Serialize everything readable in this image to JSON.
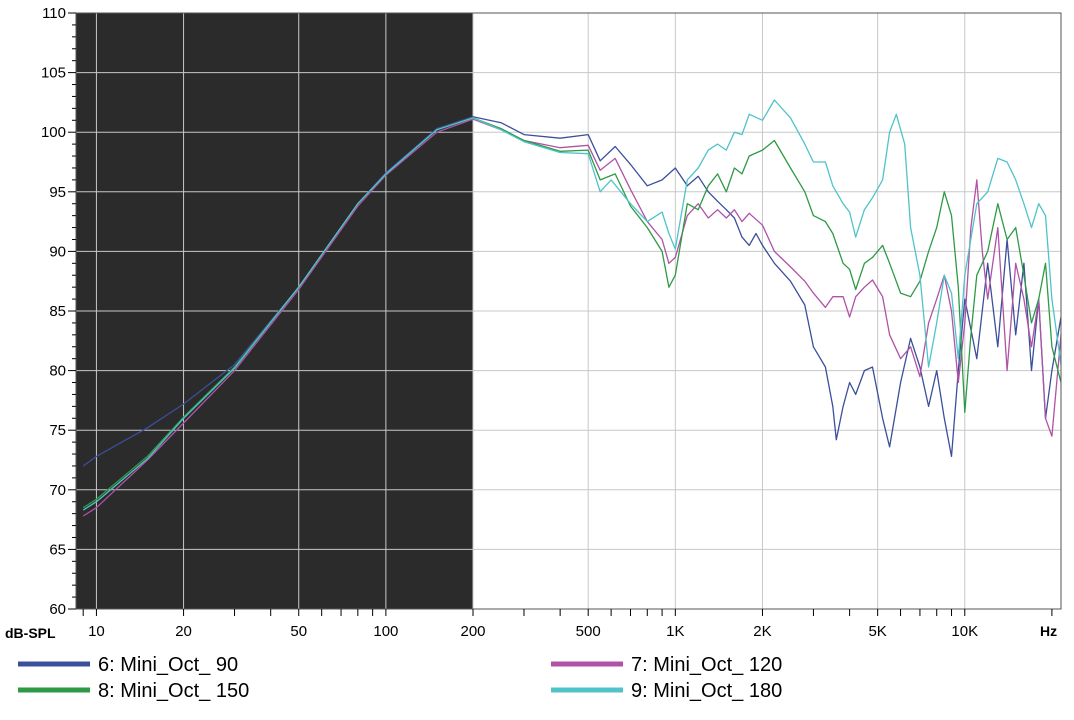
{
  "chart_data": {
    "type": "line",
    "ylabel": "dB-SPL",
    "xunit": "Hz",
    "xscale": "log",
    "xlim": [
      8.5,
      21500
    ],
    "ylim": [
      60,
      110
    ],
    "shaded_region": [
      8.5,
      200
    ],
    "grid": true,
    "legend_position": "bottom",
    "yticks": [
      "60",
      "65",
      "70",
      "75",
      "80",
      "85",
      "90",
      "95",
      "100",
      "105",
      "110"
    ],
    "xticks": [
      {
        "value": 10,
        "label": "10"
      },
      {
        "value": 20,
        "label": "20"
      },
      {
        "value": 50,
        "label": "50"
      },
      {
        "value": 100,
        "label": "100"
      },
      {
        "value": 200,
        "label": "200"
      },
      {
        "value": 500,
        "label": "500"
      },
      {
        "value": 1000,
        "label": "1K"
      },
      {
        "value": 2000,
        "label": "2K"
      },
      {
        "value": 5000,
        "label": "5K"
      },
      {
        "value": 10000,
        "label": "10K"
      }
    ],
    "series": [
      {
        "name": "6: Mini_Oct_ 90",
        "color": "#3b4f9a",
        "points": [
          [
            9,
            72
          ],
          [
            10,
            72.8
          ],
          [
            15,
            75.2
          ],
          [
            20,
            77.2
          ],
          [
            30,
            80.5
          ],
          [
            50,
            87
          ],
          [
            80,
            94
          ],
          [
            100,
            96.6
          ],
          [
            150,
            100.3
          ],
          [
            200,
            101.3
          ],
          [
            250,
            100.8
          ],
          [
            300,
            99.8
          ],
          [
            400,
            99.5
          ],
          [
            500,
            99.8
          ],
          [
            550,
            97.6
          ],
          [
            620,
            98.8
          ],
          [
            700,
            97.3
          ],
          [
            800,
            95.5
          ],
          [
            900,
            96
          ],
          [
            1000,
            97
          ],
          [
            1100,
            95.5
          ],
          [
            1200,
            96.3
          ],
          [
            1300,
            95
          ],
          [
            1400,
            94.2
          ],
          [
            1500,
            93.5
          ],
          [
            1600,
            92.8
          ],
          [
            1700,
            91.2
          ],
          [
            1800,
            90.5
          ],
          [
            1900,
            91.5
          ],
          [
            2000,
            90.5
          ],
          [
            2200,
            89
          ],
          [
            2500,
            87.5
          ],
          [
            2800,
            85.5
          ],
          [
            3000,
            82
          ],
          [
            3300,
            80.3
          ],
          [
            3500,
            77
          ],
          [
            3600,
            74.2
          ],
          [
            3800,
            77
          ],
          [
            4000,
            79
          ],
          [
            4200,
            78
          ],
          [
            4500,
            80
          ],
          [
            4800,
            80.3
          ],
          [
            5200,
            76
          ],
          [
            5500,
            73.6
          ],
          [
            6000,
            79
          ],
          [
            6500,
            82.7
          ],
          [
            7000,
            80.3
          ],
          [
            7500,
            77
          ],
          [
            8000,
            80
          ],
          [
            8500,
            76
          ],
          [
            9000,
            72.8
          ],
          [
            9500,
            80
          ],
          [
            10000,
            86
          ],
          [
            11000,
            81
          ],
          [
            12000,
            89
          ],
          [
            13000,
            82
          ],
          [
            14000,
            91
          ],
          [
            15000,
            83
          ],
          [
            16000,
            89
          ],
          [
            17000,
            80
          ],
          [
            18000,
            86
          ],
          [
            19000,
            76
          ],
          [
            20000,
            80
          ],
          [
            21500,
            84.5
          ]
        ]
      },
      {
        "name": "7: Mini_Oct_ 120",
        "color": "#b052a6",
        "points": [
          [
            9,
            67.8
          ],
          [
            10,
            68.5
          ],
          [
            15,
            72.5
          ],
          [
            20,
            75.6
          ],
          [
            30,
            80
          ],
          [
            50,
            86.8
          ],
          [
            80,
            93.8
          ],
          [
            100,
            96.4
          ],
          [
            150,
            100
          ],
          [
            200,
            101.1
          ],
          [
            250,
            100.2
          ],
          [
            300,
            99.3
          ],
          [
            400,
            98.7
          ],
          [
            500,
            98.9
          ],
          [
            550,
            96.8
          ],
          [
            620,
            97.8
          ],
          [
            700,
            95.2
          ],
          [
            800,
            92.5
          ],
          [
            900,
            91
          ],
          [
            950,
            89
          ],
          [
            1000,
            89.5
          ],
          [
            1100,
            93
          ],
          [
            1200,
            94
          ],
          [
            1300,
            92.8
          ],
          [
            1400,
            93.5
          ],
          [
            1500,
            92.8
          ],
          [
            1600,
            93.5
          ],
          [
            1700,
            92.5
          ],
          [
            1800,
            93.2
          ],
          [
            2000,
            92.2
          ],
          [
            2200,
            90
          ],
          [
            2500,
            88.7
          ],
          [
            2800,
            87.5
          ],
          [
            3000,
            86.5
          ],
          [
            3300,
            85.3
          ],
          [
            3500,
            86.2
          ],
          [
            3800,
            86.2
          ],
          [
            4000,
            84.5
          ],
          [
            4200,
            86.2
          ],
          [
            4500,
            87
          ],
          [
            4800,
            87.6
          ],
          [
            5200,
            86.2
          ],
          [
            5500,
            83
          ],
          [
            6000,
            81
          ],
          [
            6500,
            82
          ],
          [
            7000,
            79.5
          ],
          [
            7500,
            84
          ],
          [
            8000,
            86
          ],
          [
            8500,
            88
          ],
          [
            9000,
            85
          ],
          [
            9500,
            79
          ],
          [
            10000,
            84
          ],
          [
            10500,
            92
          ],
          [
            11000,
            96
          ],
          [
            11500,
            90
          ],
          [
            12000,
            86
          ],
          [
            13000,
            92
          ],
          [
            14000,
            80
          ],
          [
            15000,
            89
          ],
          [
            16000,
            86
          ],
          [
            17000,
            82
          ],
          [
            18000,
            86
          ],
          [
            19000,
            76
          ],
          [
            20000,
            74.5
          ],
          [
            21500,
            83
          ]
        ]
      },
      {
        "name": "8: Mini_Oct_ 150",
        "color": "#2e9a45",
        "points": [
          [
            9,
            68.5
          ],
          [
            10,
            69.2
          ],
          [
            15,
            72.8
          ],
          [
            20,
            76.1
          ],
          [
            30,
            80.3
          ],
          [
            50,
            87
          ],
          [
            80,
            94
          ],
          [
            100,
            96.5
          ],
          [
            150,
            100.2
          ],
          [
            200,
            101.2
          ],
          [
            250,
            100.3
          ],
          [
            300,
            99.3
          ],
          [
            400,
            98.4
          ],
          [
            500,
            98.5
          ],
          [
            550,
            96
          ],
          [
            620,
            96.5
          ],
          [
            700,
            93.8
          ],
          [
            800,
            92
          ],
          [
            900,
            90
          ],
          [
            950,
            87
          ],
          [
            1000,
            88
          ],
          [
            1100,
            94
          ],
          [
            1200,
            93.5
          ],
          [
            1300,
            95.5
          ],
          [
            1400,
            96.5
          ],
          [
            1500,
            95
          ],
          [
            1600,
            97
          ],
          [
            1700,
            96.5
          ],
          [
            1800,
            98
          ],
          [
            2000,
            98.5
          ],
          [
            2200,
            99.3
          ],
          [
            2500,
            97
          ],
          [
            2800,
            95
          ],
          [
            3000,
            93
          ],
          [
            3300,
            92.5
          ],
          [
            3500,
            91.5
          ],
          [
            3800,
            89
          ],
          [
            4000,
            88.5
          ],
          [
            4200,
            86.8
          ],
          [
            4500,
            89
          ],
          [
            4800,
            89.5
          ],
          [
            5200,
            90.5
          ],
          [
            5500,
            89
          ],
          [
            6000,
            86.5
          ],
          [
            6500,
            86.2
          ],
          [
            7000,
            87.5
          ],
          [
            7500,
            90
          ],
          [
            8000,
            92
          ],
          [
            8500,
            95
          ],
          [
            9000,
            93
          ],
          [
            9500,
            87
          ],
          [
            10000,
            76.5
          ],
          [
            10500,
            83
          ],
          [
            11000,
            88
          ],
          [
            12000,
            90
          ],
          [
            13000,
            94
          ],
          [
            14000,
            91
          ],
          [
            15000,
            92
          ],
          [
            16000,
            88
          ],
          [
            17000,
            84
          ],
          [
            18000,
            86
          ],
          [
            19000,
            89
          ],
          [
            20000,
            82
          ],
          [
            21500,
            79
          ]
        ]
      },
      {
        "name": "9: Mini_Oct_ 180",
        "color": "#4fc3c8",
        "points": [
          [
            9,
            68.3
          ],
          [
            10,
            69
          ],
          [
            15,
            72.6
          ],
          [
            20,
            76
          ],
          [
            30,
            80.2
          ],
          [
            50,
            87
          ],
          [
            80,
            94
          ],
          [
            100,
            96.5
          ],
          [
            150,
            100.2
          ],
          [
            200,
            101.2
          ],
          [
            250,
            100.2
          ],
          [
            300,
            99.2
          ],
          [
            400,
            98.3
          ],
          [
            500,
            98.2
          ],
          [
            550,
            95
          ],
          [
            600,
            96
          ],
          [
            700,
            94
          ],
          [
            800,
            92.5
          ],
          [
            900,
            93.3
          ],
          [
            950,
            91.5
          ],
          [
            1000,
            90.2
          ],
          [
            1100,
            96
          ],
          [
            1200,
            97
          ],
          [
            1300,
            98.5
          ],
          [
            1400,
            99
          ],
          [
            1500,
            98.5
          ],
          [
            1600,
            100
          ],
          [
            1700,
            99.8
          ],
          [
            1800,
            101.5
          ],
          [
            2000,
            101
          ],
          [
            2200,
            102.7
          ],
          [
            2500,
            101.2
          ],
          [
            2800,
            99
          ],
          [
            3000,
            97.5
          ],
          [
            3300,
            97.5
          ],
          [
            3500,
            95.5
          ],
          [
            3800,
            94
          ],
          [
            4000,
            93.3
          ],
          [
            4200,
            91.2
          ],
          [
            4500,
            93.5
          ],
          [
            4800,
            94.5
          ],
          [
            5200,
            96
          ],
          [
            5500,
            100
          ],
          [
            5800,
            101.5
          ],
          [
            6200,
            99
          ],
          [
            6500,
            92
          ],
          [
            7000,
            88
          ],
          [
            7500,
            80.3
          ],
          [
            8000,
            84
          ],
          [
            8500,
            88
          ],
          [
            9000,
            86.5
          ],
          [
            9500,
            81
          ],
          [
            10000,
            88
          ],
          [
            11000,
            94
          ],
          [
            12000,
            95
          ],
          [
            13000,
            97.8
          ],
          [
            14000,
            97.5
          ],
          [
            15000,
            96
          ],
          [
            16000,
            94
          ],
          [
            17000,
            92
          ],
          [
            18000,
            94
          ],
          [
            19000,
            93
          ],
          [
            20000,
            86
          ],
          [
            21500,
            80.5
          ]
        ]
      }
    ]
  }
}
